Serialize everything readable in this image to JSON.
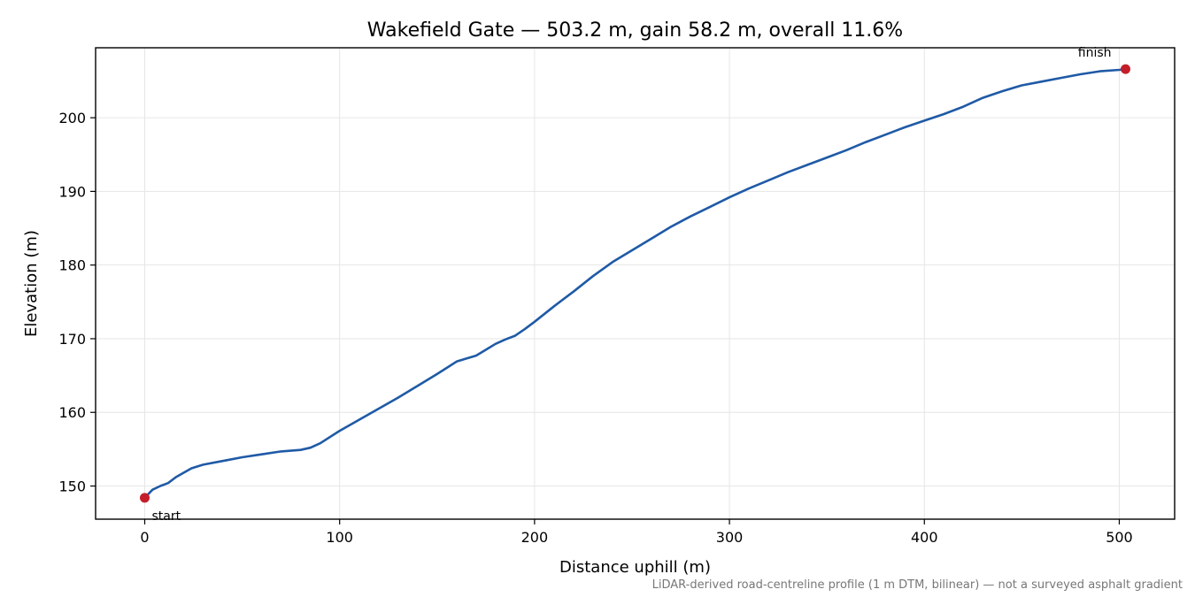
{
  "chart_data": {
    "type": "line",
    "title": "Wakefield Gate — 503.2 m, gain 58.2 m, overall 11.6%",
    "xlabel": "Distance uphill (m)",
    "ylabel": "Elevation (m)",
    "xlim": [
      -25.2,
      528.4
    ],
    "ylim": [
      145.5,
      209.5
    ],
    "xticks": [
      0,
      100,
      200,
      300,
      400,
      500
    ],
    "yticks": [
      150,
      160,
      170,
      180,
      190,
      200
    ],
    "grid": true,
    "colors": {
      "line": "#1f5aa6",
      "marker": "#c41e2a",
      "grid": "#e6e6e6",
      "footnote": "#777777"
    },
    "series": [
      {
        "x": [
          0,
          4,
          8,
          12,
          16,
          20,
          24,
          30,
          40,
          50,
          60,
          70,
          80,
          85,
          90,
          100,
          110,
          120,
          130,
          140,
          150,
          160,
          165,
          170,
          175,
          180,
          185,
          190,
          195,
          200,
          210,
          220,
          230,
          240,
          250,
          260,
          270,
          280,
          290,
          300,
          310,
          320,
          330,
          340,
          350,
          360,
          370,
          380,
          390,
          400,
          410,
          420,
          430,
          440,
          450,
          460,
          470,
          480,
          490,
          500,
          503.2
        ],
        "y": [
          148.4,
          149.5,
          150.0,
          150.4,
          151.2,
          151.8,
          152.4,
          152.9,
          153.4,
          153.9,
          154.3,
          154.7,
          154.9,
          155.2,
          155.8,
          157.5,
          159.0,
          160.5,
          162.0,
          163.6,
          165.2,
          166.9,
          167.3,
          167.7,
          168.5,
          169.3,
          169.9,
          170.4,
          171.3,
          172.3,
          174.4,
          176.4,
          178.5,
          180.4,
          182.0,
          183.6,
          185.2,
          186.6,
          187.9,
          189.2,
          190.4,
          191.5,
          192.6,
          193.6,
          194.6,
          195.6,
          196.7,
          197.7,
          198.7,
          199.6,
          200.5,
          201.5,
          202.7,
          203.6,
          204.4,
          204.9,
          205.4,
          205.9,
          206.3,
          206.5,
          206.6
        ]
      }
    ],
    "markers": [
      {
        "label": "start",
        "x": 0,
        "y": 148.4
      },
      {
        "label": "finish",
        "x": 503.2,
        "y": 206.6
      }
    ],
    "footnote": "LiDAR-derived road-centreline profile (1 m DTM, bilinear) — not a surveyed asphalt gradient"
  }
}
